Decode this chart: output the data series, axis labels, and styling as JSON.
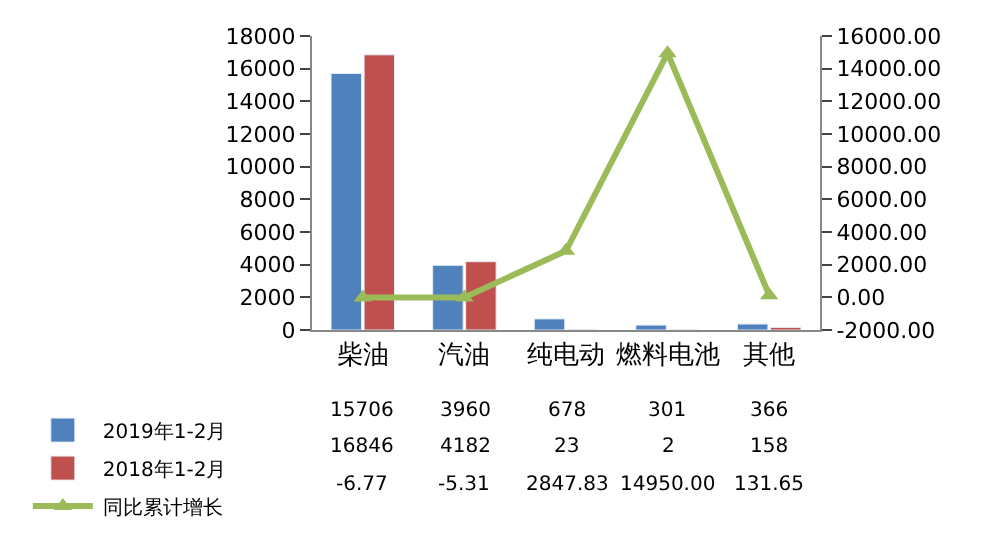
{
  "chart_data": {
    "type": "bar",
    "categories": [
      "柴油",
      "汽油",
      "纯电动",
      "燃料电池",
      "其他"
    ],
    "series": [
      {
        "name": "2019年1-2月",
        "color": "#4f81bd",
        "values": [
          15706,
          3960,
          678,
          301,
          366
        ],
        "value_labels": [
          "15706",
          "3960",
          "678",
          "301",
          "366"
        ]
      },
      {
        "name": "2018年1-2月",
        "color": "#c0504d",
        "values": [
          16846,
          4182,
          23,
          2,
          158
        ],
        "value_labels": [
          "16846",
          "4182",
          "23",
          "2",
          "158"
        ]
      },
      {
        "name": "同比累计增长",
        "color": "#9bbb59",
        "type": "line",
        "axis": "y2",
        "marker": "triangle",
        "values": [
          -6.77,
          -5.31,
          2847.83,
          14950.0,
          131.65
        ],
        "value_labels": [
          "-6.77",
          "-5.31",
          "2847.83",
          "14950.00",
          "131.65"
        ]
      }
    ],
    "ylim": [
      0,
      18000
    ],
    "yticks": [
      0,
      2000,
      4000,
      6000,
      8000,
      10000,
      12000,
      14000,
      16000,
      18000
    ],
    "y2lim": [
      -2000,
      16000
    ],
    "y2ticks": [
      {
        "value": -2000,
        "label": "-2000.00"
      },
      {
        "value": 0,
        "label": "0.00"
      },
      {
        "value": 2000,
        "label": "2000.00"
      },
      {
        "value": 4000,
        "label": "4000.00"
      },
      {
        "value": 6000,
        "label": "6000.00"
      },
      {
        "value": 8000,
        "label": "8000.00"
      },
      {
        "value": 10000,
        "label": "10000.00"
      },
      {
        "value": 12000,
        "label": "12000.00"
      },
      {
        "value": 14000,
        "label": "14000.00"
      },
      {
        "value": 16000,
        "label": "16000.00"
      }
    ],
    "legend": "bottom"
  }
}
